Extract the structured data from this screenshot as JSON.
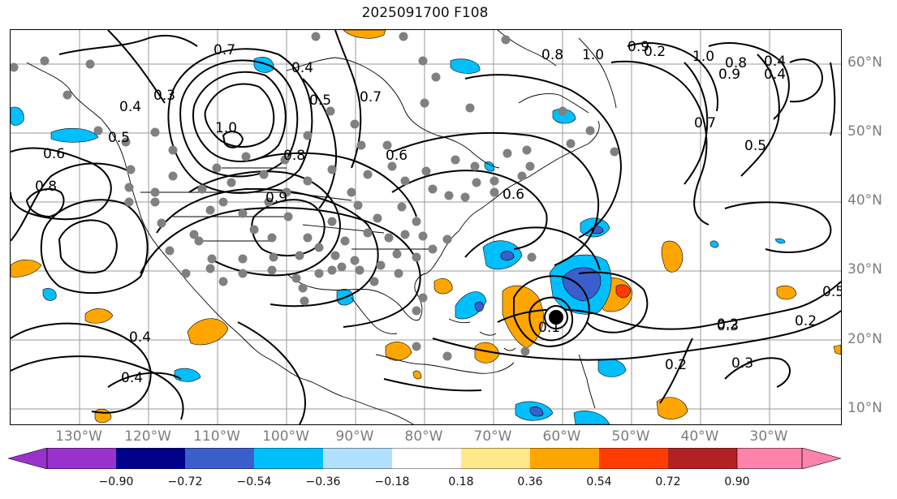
{
  "title": "2025091700 F108",
  "lat_labels": [
    "60°N",
    "50°N",
    "40°N",
    "30°N",
    "20°N",
    "10°N"
  ],
  "lon_labels": [
    "130°W",
    "120°W",
    "110°W",
    "100°W",
    "90°W",
    "80°W",
    "70°W",
    "60°W",
    "50°W",
    "40°W",
    "30°W"
  ],
  "colorbar": {
    "colors": [
      "#9932cc",
      "#00008b",
      "#3a5fcd",
      "#00bfff",
      "#b0e2ff",
      "#ffffff",
      "#ffe88a",
      "#ffa500",
      "#ff3c00",
      "#b22222",
      "#ff82ab"
    ],
    "ticks": [
      "−0.90",
      "−0.72",
      "−0.54",
      "−0.36",
      "−0.18",
      "0.18",
      "0.36",
      "0.54",
      "0.72",
      "0.90"
    ]
  },
  "contour_labels": [
    "0.7",
    "0.4",
    "0.5",
    "0.7",
    "0.8",
    "1.0",
    "0.9",
    "0.2",
    "1.0",
    "0.8",
    "0.4",
    "0.6",
    "0.8",
    "0.4",
    "0.3",
    "0.5",
    "0.6",
    "0.6",
    "0.2",
    "0.5",
    "0.3",
    "0.2",
    "0.3",
    "0.2",
    "0.4",
    "0.4",
    "1.0",
    "0.8",
    "0.9",
    "0.7",
    "0.5",
    "0.9",
    "0.4",
    "0.1"
  ],
  "legend_colors": {
    "contour": "#000000",
    "station": "#808080",
    "grid": "#999999",
    "coast": "#000000"
  }
}
